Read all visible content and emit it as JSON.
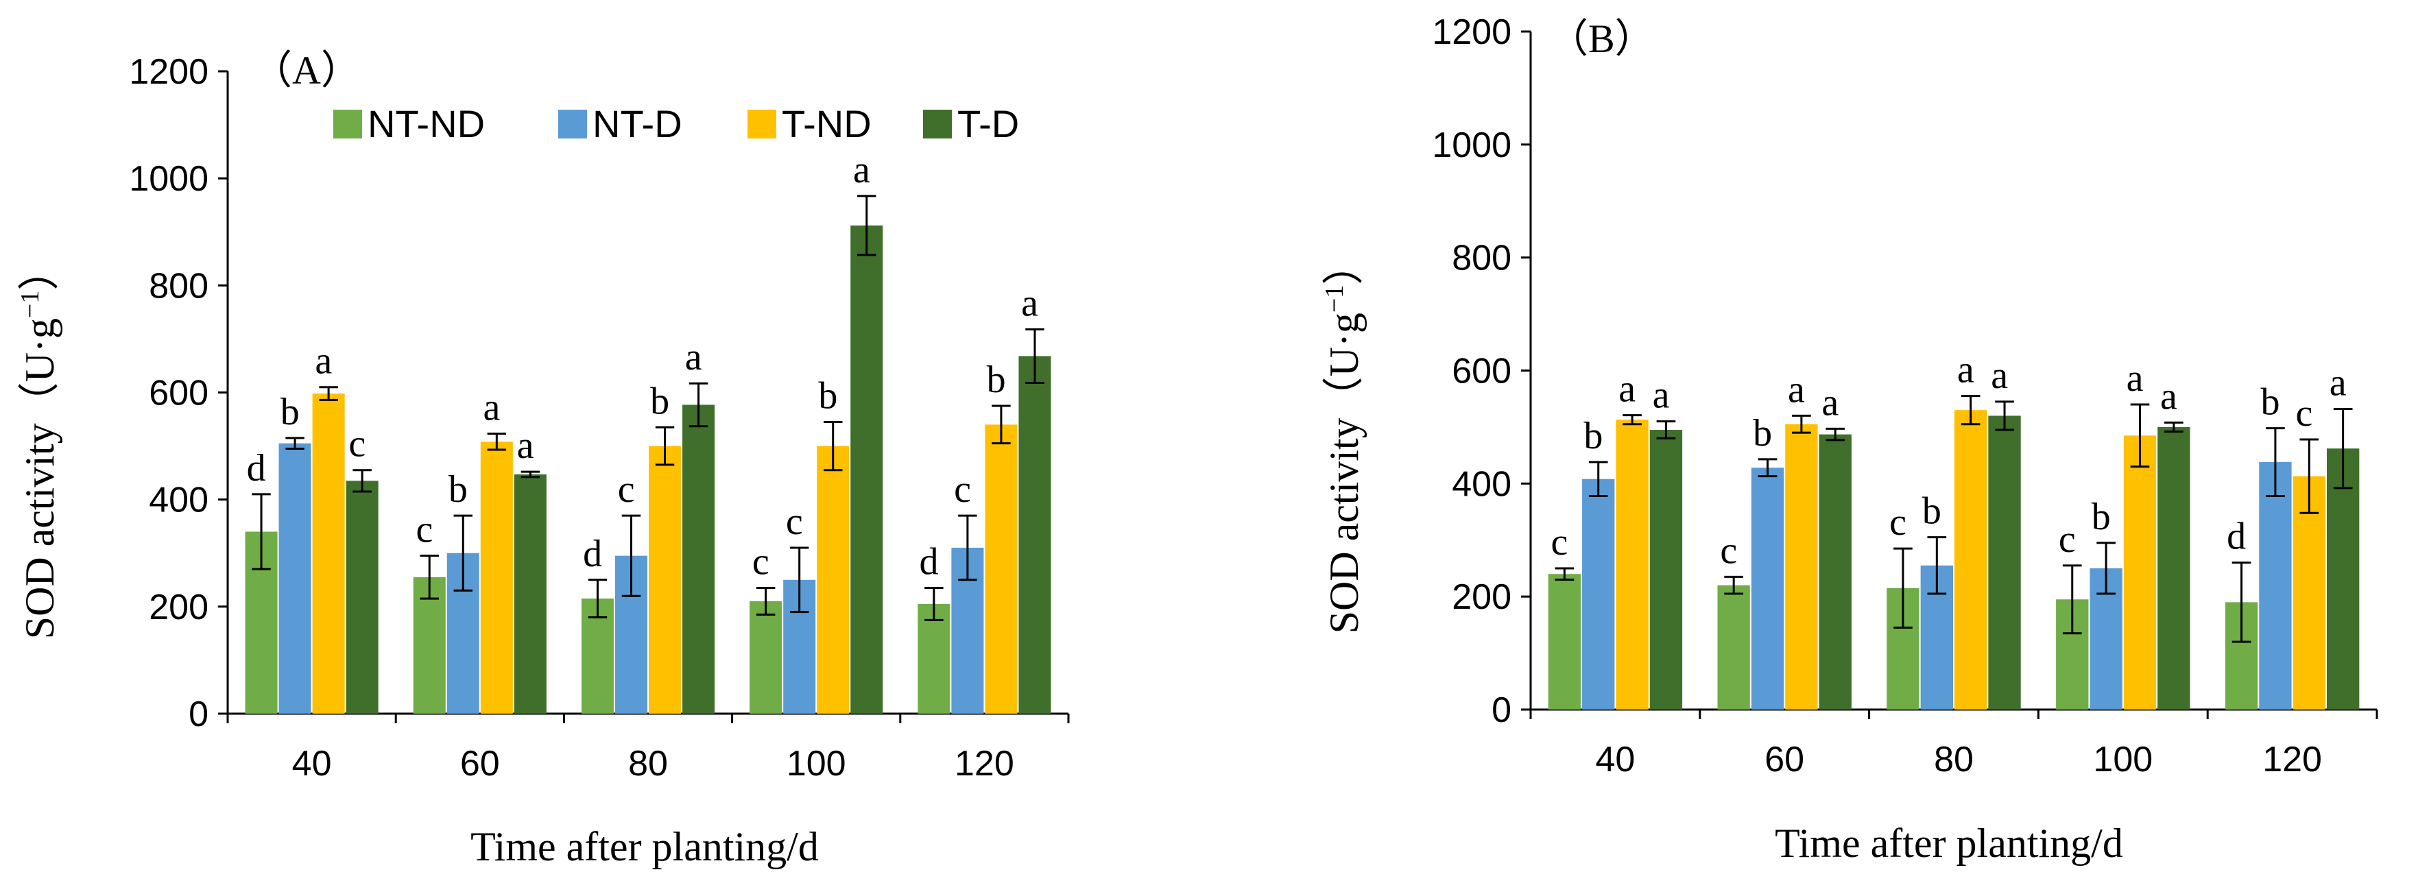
{
  "colors": {
    "NT-ND": "#70ad47",
    "NT-D": "#5b9bd5",
    "T-ND": "#ffc000",
    "T-D": "#3f6f2b",
    "axis": "#000000"
  },
  "legend": [
    "NT-ND",
    "NT-D",
    "T-ND",
    "T-D"
  ],
  "chart_data": [
    {
      "type": "bar",
      "panel_label": "（A）",
      "legend_visible": true,
      "legend_placement": "top",
      "categories": [
        "40",
        "60",
        "80",
        "100",
        "120"
      ],
      "xlabel": "Time after planting/d",
      "ylabel_main": "SOD activity（U·g",
      "ylabel_sup": "−1",
      "ylabel_end": "）",
      "ylim": [
        0,
        1200
      ],
      "yticks": [
        "0",
        "200",
        "400",
        "600",
        "800",
        "1000",
        "1200"
      ],
      "series": [
        {
          "name": "NT-ND",
          "values": [
            340,
            255,
            215,
            210,
            205
          ],
          "errors": [
            70,
            40,
            35,
            25,
            30
          ],
          "letters": [
            "d",
            "c",
            "d",
            "c",
            "d"
          ]
        },
        {
          "name": "NT-D",
          "values": [
            505,
            300,
            295,
            250,
            310
          ],
          "errors": [
            10,
            70,
            75,
            60,
            60
          ],
          "letters": [
            "b",
            "b",
            "c",
            "c",
            "c"
          ]
        },
        {
          "name": "T-ND",
          "values": [
            598,
            508,
            500,
            500,
            540
          ],
          "errors": [
            12,
            15,
            35,
            45,
            35
          ],
          "letters": [
            "a",
            "a",
            "b",
            "b",
            "b"
          ]
        },
        {
          "name": "T-D",
          "values": [
            435,
            447,
            577,
            912,
            668
          ],
          "errors": [
            20,
            5,
            40,
            55,
            50
          ],
          "letters": [
            "c",
            "a",
            "a",
            "a",
            "a"
          ]
        }
      ]
    },
    {
      "type": "bar",
      "panel_label": "（B）",
      "legend_visible": false,
      "categories": [
        "40",
        "60",
        "80",
        "100",
        "120"
      ],
      "xlabel": "Time after planting/d",
      "ylabel_main": "SOD activity（U·g",
      "ylabel_sup": "−1",
      "ylabel_end": "）",
      "ylim": [
        0,
        1200
      ],
      "yticks": [
        "0",
        "200",
        "400",
        "600",
        "800",
        "1000",
        "1200"
      ],
      "series": [
        {
          "name": "NT-ND",
          "values": [
            240,
            220,
            215,
            195,
            190
          ],
          "errors": [
            10,
            15,
            70,
            60,
            70
          ],
          "letters": [
            "c",
            "c",
            "c",
            "c",
            "d"
          ]
        },
        {
          "name": "NT-D",
          "values": [
            408,
            428,
            255,
            250,
            438
          ],
          "errors": [
            30,
            15,
            50,
            45,
            60
          ],
          "letters": [
            "b",
            "b",
            "b",
            "b",
            "b"
          ]
        },
        {
          "name": "T-ND",
          "values": [
            513,
            505,
            530,
            485,
            413
          ],
          "errors": [
            8,
            15,
            25,
            55,
            65
          ],
          "letters": [
            "a",
            "a",
            "a",
            "a",
            "c"
          ]
        },
        {
          "name": "T-D",
          "values": [
            495,
            487,
            520,
            500,
            462
          ],
          "errors": [
            15,
            10,
            25,
            8,
            70
          ],
          "letters": [
            "a",
            "a",
            "a",
            "a",
            "a"
          ]
        }
      ]
    }
  ]
}
